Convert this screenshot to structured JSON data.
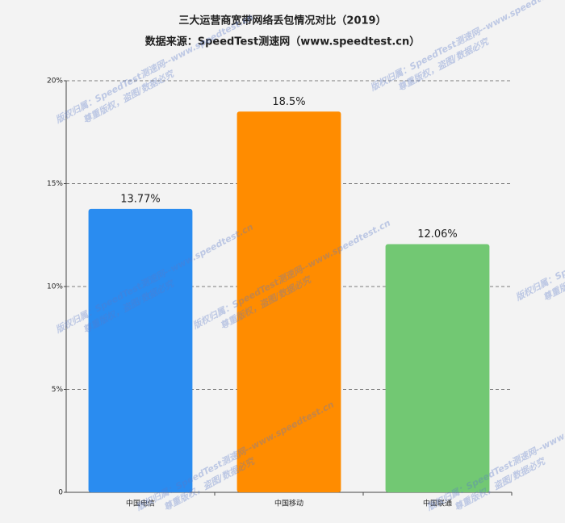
{
  "chart_data": {
    "type": "bar",
    "title": "三大运营商宽带网络丢包情况对比（2019）",
    "subtitle": "数据来源：SpeedTest测速网（www.speedtest.cn）",
    "categories": [
      "中国电信",
      "中国移动",
      "中国联通"
    ],
    "values": [
      13.77,
      18.5,
      12.06
    ],
    "value_labels": [
      "13.77%",
      "18.5%",
      "12.06%"
    ],
    "colors": [
      "#2a8cf0",
      "#ff8c00",
      "#72c873"
    ],
    "ylim": [
      0,
      20
    ],
    "yticks": [
      0,
      {
        "value": 5,
        "label": "5%"
      },
      {
        "value": 10,
        "label": "10%"
      },
      {
        "value": 15,
        "label": "15%"
      },
      {
        "value": 20,
        "label": "20%"
      }
    ],
    "grid": true,
    "watermark": [
      "版权归属：SpeedTest测速网--www.speedtest.cn",
      "尊重版权，盗图/数据必究"
    ]
  }
}
